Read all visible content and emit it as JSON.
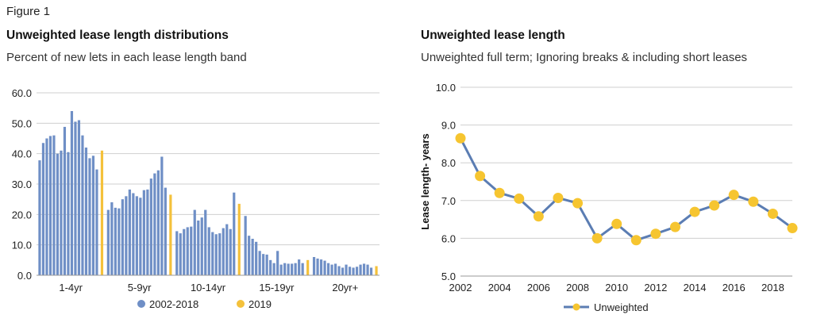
{
  "figure_label": "Figure 1",
  "colors": {
    "bar_main": "#6f8fc6",
    "bar_2019": "#f4c13b",
    "line": "#5b7db3",
    "marker": "#f6c530",
    "grid": "#cfcfcf"
  },
  "chart_data": [
    {
      "type": "bar",
      "title": "Unweighted lease length distributions",
      "subtitle": "Percent of new lets in each lease length band",
      "ylim": [
        0,
        60
      ],
      "yticks": [
        "0.0",
        "10.0",
        "20.0",
        "30.0",
        "40.0",
        "50.0",
        "60.0"
      ],
      "grid": true,
      "legend_position": "bottom",
      "groups": [
        {
          "label": "1-4yr",
          "series_2002_2018": [
            37.8,
            43.5,
            45.0,
            45.8,
            46.0,
            40.0,
            41.0,
            48.8,
            40.5,
            54.0,
            50.5,
            51.0,
            46.0,
            42.0,
            38.5,
            39.3,
            34.8
          ],
          "value_2019": 41.0
        },
        {
          "label": "5-9yr",
          "series_2002_2018": [
            21.5,
            24.0,
            22.2,
            22.0,
            25.0,
            26.0,
            28.2,
            27.0,
            26.0,
            25.5,
            28.0,
            28.2,
            31.8,
            33.5,
            34.5,
            39.0,
            28.8
          ],
          "value_2019": 26.5
        },
        {
          "label": "10-14yr",
          "series_2002_2018": [
            14.5,
            13.8,
            15.2,
            15.8,
            16.0,
            21.5,
            18.0,
            19.0,
            21.5,
            15.8,
            14.2,
            13.5,
            13.8,
            15.5,
            16.8,
            15.2,
            27.2
          ],
          "value_2019": 23.5
        },
        {
          "label": "15-19yr",
          "series_2002_2018": [
            19.5,
            13.0,
            12.0,
            11.0,
            8.0,
            7.0,
            6.8,
            5.0,
            4.0,
            8.0,
            3.5,
            4.0,
            3.8,
            3.8,
            4.0,
            5.2,
            4.0
          ],
          "value_2019": 5.0
        },
        {
          "label": "20yr+",
          "series_2002_2018": [
            6.0,
            5.5,
            5.2,
            4.8,
            4.0,
            3.5,
            3.8,
            3.0,
            2.5,
            3.5,
            2.8,
            2.5,
            2.8,
            3.5,
            3.8,
            3.5,
            2.5
          ],
          "value_2019": 3.0
        }
      ],
      "series": [
        {
          "name": "2002-2018"
        },
        {
          "name": "2019"
        }
      ]
    },
    {
      "type": "line",
      "title": "Unweighted lease length",
      "subtitle": "Unweighted full term; Ignoring breaks & including short leases",
      "ylabel": "Lease length- years",
      "ylim": [
        5.0,
        10.0
      ],
      "yticks": [
        "5.0",
        "6.0",
        "7.0",
        "8.0",
        "9.0",
        "10.0"
      ],
      "xlim": [
        2002,
        2019
      ],
      "xticks": [
        "2002",
        "2004",
        "2006",
        "2008",
        "2010",
        "2012",
        "2014",
        "2016",
        "2018"
      ],
      "grid": true,
      "legend_position": "bottom",
      "series": [
        {
          "name": "Unweighted",
          "x": [
            2002,
            2003,
            2004,
            2005,
            2006,
            2007,
            2008,
            2009,
            2010,
            2011,
            2012,
            2013,
            2014,
            2015,
            2016,
            2017,
            2018,
            2019
          ],
          "values": [
            8.65,
            7.65,
            7.2,
            7.05,
            6.58,
            7.07,
            6.93,
            6.0,
            6.38,
            5.95,
            6.12,
            6.3,
            6.7,
            6.87,
            7.15,
            6.97,
            6.65,
            6.27
          ]
        }
      ]
    }
  ]
}
